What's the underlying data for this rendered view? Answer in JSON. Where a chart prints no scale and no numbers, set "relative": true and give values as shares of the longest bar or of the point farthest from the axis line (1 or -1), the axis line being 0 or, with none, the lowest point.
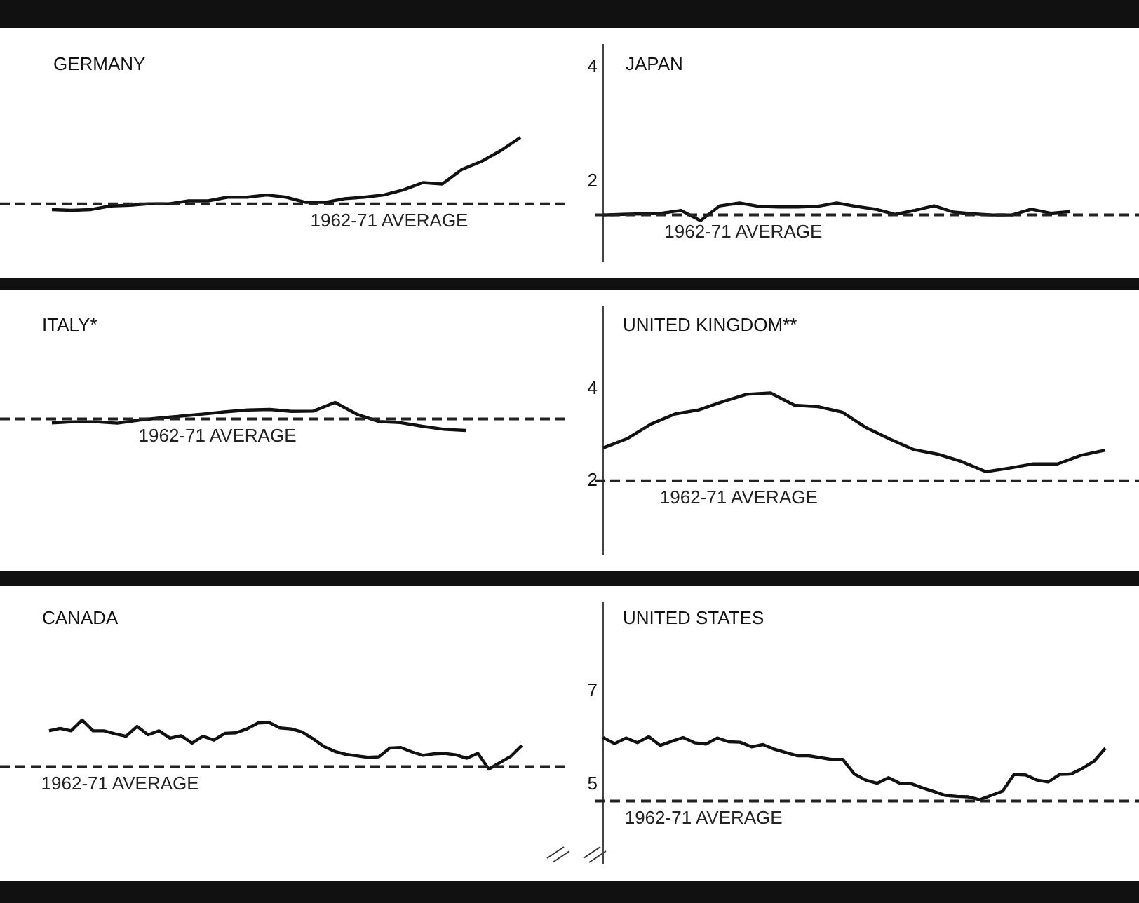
{
  "chart_data": [
    {
      "type": "line",
      "title": "GERMANY",
      "relative": true,
      "tick_labels": false,
      "color": "#111111",
      "categories": [
        null,
        null,
        null,
        null,
        null,
        null,
        null,
        null,
        null,
        null,
        null,
        null,
        null,
        null,
        null,
        null,
        null,
        null,
        null,
        null,
        null,
        null,
        null,
        null,
        null
      ],
      "values": [
        0.01,
        0,
        0.01,
        0.06,
        0.07,
        0.09,
        0.09,
        0.13,
        0.13,
        0.18,
        0.18,
        0.21,
        0.18,
        0.11,
        0.11,
        0.16,
        0.18,
        0.21,
        0.28,
        0.38,
        0.36,
        0.56,
        0.67,
        0.82,
        1
      ],
      "ref_lines": [
        {
          "axis": "y",
          "value": 0.09,
          "label": "1962-71 AVERAGE",
          "line_style": "dashed"
        }
      ]
    },
    {
      "type": "line",
      "title": "JAPAN",
      "tick_labels": "y",
      "color": "#111111",
      "ylim": [
        0.6,
        4.4
      ],
      "yticks": [
        2,
        4
      ],
      "categories": [
        null,
        null,
        null,
        null,
        null,
        null,
        null,
        null,
        null,
        null,
        null,
        null,
        null,
        null,
        null,
        null,
        null,
        null,
        null,
        null,
        null,
        null,
        null,
        null,
        null
      ],
      "values": [
        1.41,
        1.42,
        1.43,
        1.44,
        1.49,
        1.31,
        1.57,
        1.62,
        1.56,
        1.55,
        1.55,
        1.56,
        1.62,
        1.56,
        1.51,
        1.42,
        1.49,
        1.57,
        1.46,
        1.43,
        1.41,
        1.41,
        1.51,
        1.44,
        1.47
      ],
      "ref_lines": [
        {
          "axis": "y",
          "value": 1.41,
          "label": "1962-71 AVERAGE",
          "line_style": "dashed"
        }
      ]
    },
    {
      "type": "line",
      "title": "ITALY*",
      "relative": true,
      "tick_labels": false,
      "color": "#111111",
      "categories": [
        null,
        null,
        null,
        null,
        null,
        null,
        null,
        null,
        null,
        null,
        null,
        null,
        null,
        null,
        null,
        null,
        null,
        null,
        null,
        null
      ],
      "values": [
        0.27,
        0.31,
        0.31,
        0.26,
        0.37,
        0.45,
        0.52,
        0.59,
        0.67,
        0.73,
        0.75,
        0.68,
        0.69,
        1,
        0.58,
        0.32,
        0.28,
        0.15,
        0.04,
        0
      ],
      "ref_lines": [
        {
          "axis": "y",
          "value": 0.41,
          "label": "1962-71 AVERAGE",
          "line_style": "dashed"
        }
      ]
    },
    {
      "type": "line",
      "title": "UNITED KINGDOM**",
      "tick_labels": "y",
      "color": "#111111",
      "ylim": [
        0.4,
        5.8
      ],
      "yticks": [
        2,
        4
      ],
      "categories": [
        null,
        null,
        null,
        null,
        null,
        null,
        null,
        null,
        null,
        null,
        null,
        null,
        null,
        null,
        null,
        null,
        null,
        null,
        null,
        null,
        null,
        null
      ],
      "values": [
        2.72,
        2.92,
        3.24,
        3.46,
        3.55,
        3.73,
        3.89,
        3.92,
        3.65,
        3.62,
        3.5,
        3.16,
        2.91,
        2.68,
        2.58,
        2.42,
        2.2,
        2.28,
        2.37,
        2.37,
        2.56,
        2.67
      ],
      "ref_lines": [
        {
          "axis": "y",
          "value": 2,
          "label": "1962-71 AVERAGE",
          "line_style": "dashed"
        }
      ]
    },
    {
      "type": "line",
      "title": "CANADA",
      "relative": true,
      "tick_labels": false,
      "color": "#111111",
      "categories": [
        null,
        null,
        null,
        null,
        null,
        null,
        null,
        null,
        null,
        null,
        null,
        null,
        null,
        null,
        null,
        null,
        null,
        null,
        null,
        null,
        null,
        null,
        null,
        null,
        null,
        null,
        null,
        null,
        null,
        null,
        null,
        null,
        null,
        null,
        null,
        null,
        null,
        null,
        null,
        null,
        null,
        null,
        null,
        null
      ],
      "values": [
        0.78,
        0.83,
        0.78,
        1,
        0.78,
        0.78,
        0.72,
        0.67,
        0.87,
        0.7,
        0.78,
        0.63,
        0.68,
        0.53,
        0.67,
        0.59,
        0.73,
        0.74,
        0.82,
        0.94,
        0.95,
        0.84,
        0.82,
        0.76,
        0.62,
        0.46,
        0.36,
        0.3,
        0.27,
        0.24,
        0.25,
        0.43,
        0.44,
        0.35,
        0.28,
        0.31,
        0.32,
        0.29,
        0.22,
        0.32,
        0,
        0.13,
        0.26,
        0.48
      ],
      "ref_lines": [
        {
          "axis": "y",
          "value": 0.05,
          "label": "1962-71 AVERAGE",
          "line_style": "dashed"
        }
      ]
    },
    {
      "type": "line",
      "title": "UNITED STATES",
      "tick_labels": "y",
      "color": "#111111",
      "ylim": [
        3.3,
        8.9
      ],
      "yticks": [
        5,
        7
      ],
      "categories": [
        null,
        null,
        null,
        null,
        null,
        null,
        null,
        null,
        null,
        null,
        null,
        null,
        null,
        null,
        null,
        null,
        null,
        null,
        null,
        null,
        null,
        null,
        null,
        null,
        null,
        null,
        null,
        null,
        null,
        null,
        null,
        null,
        null,
        null,
        null,
        null,
        null,
        null,
        null,
        null,
        null,
        null,
        null,
        null,
        null
      ],
      "values": [
        6.01,
        5.88,
        6,
        5.9,
        6.03,
        5.84,
        5.93,
        6.01,
        5.9,
        5.87,
        6,
        5.92,
        5.91,
        5.81,
        5.86,
        5.76,
        5.69,
        5.62,
        5.62,
        5.58,
        5.54,
        5.54,
        5.23,
        5.1,
        5.03,
        5.15,
        5.03,
        5.02,
        4.93,
        4.85,
        4.77,
        4.75,
        4.74,
        4.68,
        4.77,
        4.86,
        5.22,
        5.21,
        5.1,
        5.06,
        5.22,
        5.23,
        5.35,
        5.5,
        5.78
      ],
      "ref_lines": [
        {
          "axis": "y",
          "value": 4.65,
          "label": "1962-71 AVERAGE",
          "line_style": "dashed"
        }
      ]
    }
  ]
}
